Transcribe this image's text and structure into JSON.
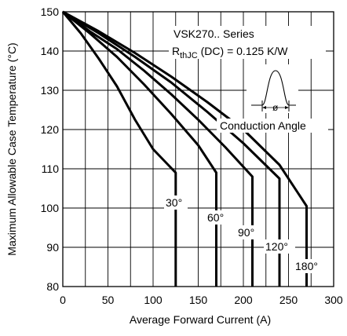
{
  "chart_data": {
    "type": "line",
    "xlabel": "Average Forward Current (A)",
    "ylabel": "Maximum Allowable Case Temperature (°C)",
    "xlim": [
      0,
      300
    ],
    "ylim": [
      80,
      150
    ],
    "xticks": [
      0,
      50,
      100,
      150,
      200,
      250,
      300
    ],
    "yticks": [
      80,
      90,
      100,
      110,
      120,
      130,
      140,
      150
    ],
    "grid": true,
    "annotations": {
      "series_name": "VSK270.. Series",
      "rth_main": "R",
      "rth_sub": "thJC",
      "rth_rest": " (DC) = 0.125 K/W",
      "conduction_angle": "Conduction Angle",
      "phi": "ø"
    },
    "series": [
      {
        "label": "30°",
        "x": [
          0,
          20,
          40,
          60,
          80,
          100,
          125,
          125
        ],
        "y": [
          150,
          144.5,
          138,
          131,
          122.5,
          115,
          109,
          80
        ]
      },
      {
        "label": "60°",
        "x": [
          0,
          30,
          60,
          90,
          120,
          150,
          170,
          170
        ],
        "y": [
          150,
          144.5,
          138.5,
          131.5,
          124,
          116,
          109,
          80
        ]
      },
      {
        "label": "90°",
        "x": [
          0,
          30,
          60,
          90,
          120,
          150,
          180,
          210,
          210
        ],
        "y": [
          150,
          145,
          140.5,
          135,
          129,
          122.5,
          115.5,
          108,
          80
        ]
      },
      {
        "label": "120°",
        "x": [
          0,
          40,
          80,
          120,
          160,
          200,
          240,
          240
        ],
        "y": [
          150,
          144.5,
          138.5,
          132,
          124.5,
          116.5,
          107.5,
          80
        ]
      },
      {
        "label": "180°",
        "x": [
          0,
          40,
          80,
          120,
          160,
          200,
          240,
          270,
          270
        ],
        "y": [
          150,
          145,
          139.5,
          133.5,
          127,
          120,
          111,
          100.5,
          80
        ]
      }
    ]
  }
}
